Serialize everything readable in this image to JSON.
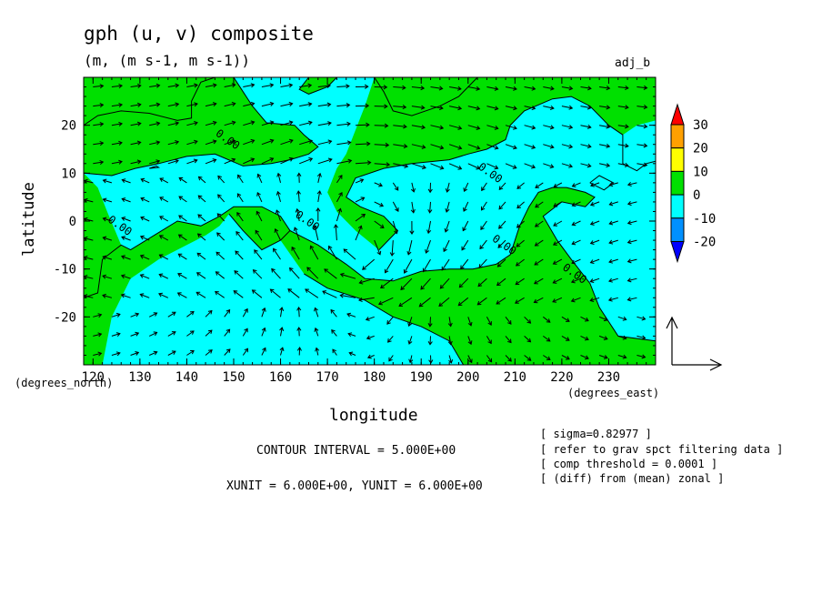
{
  "chart_data": {
    "type": "heatmap",
    "title": "gph (u, v) composite",
    "subtitle": "(m, (m s-1, m s-1))",
    "corner_label": "adj_b",
    "xlabel": "longitude",
    "ylabel": "latitude",
    "x_unit_label": "(degrees_east)",
    "y_unit_label": "(degrees_north)",
    "xlim": [
      118,
      240
    ],
    "ylim": [
      -30,
      30
    ],
    "x_ticks": [
      120,
      130,
      140,
      150,
      160,
      170,
      180,
      190,
      200,
      210,
      220,
      230
    ],
    "y_ticks": [
      20,
      10,
      0,
      -10,
      -20
    ],
    "colorbar": {
      "labels": [
        "30",
        "20",
        "10",
        "0",
        "-10",
        "-20"
      ],
      "bins": [
        {
          "range": [
            30,
            40
          ],
          "color": "#ff0000"
        },
        {
          "range": [
            20,
            30
          ],
          "color": "#ffa000"
        },
        {
          "range": [
            10,
            20
          ],
          "color": "#ffff00"
        },
        {
          "range": [
            0,
            10
          ],
          "color": "#00e000"
        },
        {
          "range": [
            -10,
            0
          ],
          "color": "#00ffff"
        },
        {
          "range": [
            -20,
            -10
          ],
          "color": "#0090ff"
        },
        {
          "range": [
            -30,
            -20
          ],
          "color": "#0000ff"
        }
      ]
    },
    "contour_labels": [
      {
        "text": "0.00",
        "lon": 146,
        "lat": 18
      },
      {
        "text": "0.00",
        "lon": 123,
        "lat": 0
      },
      {
        "text": "0.00",
        "lon": 163,
        "lat": 1
      },
      {
        "text": "0.00",
        "lon": 202,
        "lat": 11
      },
      {
        "text": "0.00",
        "lon": 205,
        "lat": -4
      },
      {
        "text": "0.00",
        "lon": 220,
        "lat": -10
      }
    ],
    "zero_contour_segments": [
      [
        [
          118,
          20
        ],
        [
          121,
          22
        ],
        [
          126,
          23
        ],
        [
          132,
          22.5
        ],
        [
          138,
          21
        ],
        [
          141,
          21.5
        ],
        [
          141,
          25
        ],
        [
          143,
          29
        ],
        [
          146,
          30
        ]
      ],
      [
        [
          118,
          10
        ],
        [
          124,
          9.5
        ],
        [
          129,
          11
        ],
        [
          134,
          12
        ],
        [
          140,
          13.5
        ],
        [
          146,
          14
        ],
        [
          152,
          11.5
        ],
        [
          158,
          12
        ],
        [
          162,
          12.8
        ],
        [
          166,
          14
        ],
        [
          168,
          15.5
        ],
        [
          165,
          18
        ],
        [
          163,
          20
        ],
        [
          157,
          20.5
        ],
        [
          154,
          24
        ],
        [
          152,
          27
        ],
        [
          150,
          30
        ]
      ],
      [
        [
          118,
          -16
        ],
        [
          121,
          -15
        ],
        [
          122,
          -8
        ],
        [
          126,
          -5
        ],
        [
          128,
          -6
        ],
        [
          133,
          -3
        ],
        [
          138,
          0
        ],
        [
          143,
          -1
        ],
        [
          147,
          1
        ],
        [
          150,
          3
        ],
        [
          156,
          3
        ],
        [
          160,
          1
        ],
        [
          162,
          -2
        ],
        [
          160,
          -4
        ],
        [
          156,
          -6
        ],
        [
          154,
          -4
        ],
        [
          152,
          -2
        ],
        [
          149,
          1.5
        ]
      ],
      [
        [
          165,
          -11
        ],
        [
          170,
          -14
        ],
        [
          178,
          -16.5
        ],
        [
          184,
          -20
        ],
        [
          190,
          -22
        ],
        [
          196,
          -25
        ],
        [
          199,
          -30
        ]
      ],
      [
        [
          162,
          -2
        ],
        [
          168,
          -5
        ],
        [
          174,
          -9
        ],
        [
          178,
          -12
        ],
        [
          184,
          -12.5
        ],
        [
          190,
          -10.5
        ],
        [
          196,
          -10
        ],
        [
          201,
          -10
        ],
        [
          206,
          -9
        ],
        [
          209,
          -7
        ],
        [
          211,
          -1
        ],
        [
          213,
          3
        ],
        [
          215,
          6
        ],
        [
          218,
          7
        ],
        [
          221,
          7
        ],
        [
          225,
          6
        ],
        [
          227,
          5
        ],
        [
          225,
          3
        ],
        [
          220,
          4
        ],
        [
          216,
          1
        ],
        [
          219,
          -4
        ],
        [
          222,
          -8
        ],
        [
          226,
          -13
        ],
        [
          228,
          -18
        ],
        [
          232,
          -24
        ],
        [
          240,
          -25
        ]
      ],
      [
        [
          181,
          -6
        ],
        [
          185,
          -2
        ],
        [
          182,
          1
        ],
        [
          177,
          3
        ],
        [
          174,
          5
        ],
        [
          176,
          9
        ],
        [
          182,
          11
        ],
        [
          188,
          12
        ],
        [
          196,
          12.8
        ],
        [
          200,
          14
        ],
        [
          204,
          15
        ],
        [
          208,
          17
        ],
        [
          209,
          20
        ],
        [
          212,
          23
        ],
        [
          218,
          25.5
        ],
        [
          222,
          26
        ],
        [
          226,
          24
        ],
        [
          228,
          22
        ],
        [
          230,
          20
        ],
        [
          233,
          18
        ],
        [
          233,
          12
        ],
        [
          236,
          10.5
        ],
        [
          238,
          12
        ],
        [
          240,
          12.5
        ]
      ],
      [
        [
          180,
          30
        ],
        [
          182,
          27
        ],
        [
          184,
          23
        ],
        [
          188,
          22
        ],
        [
          194,
          24
        ],
        [
          198,
          26
        ],
        [
          202,
          30
        ]
      ],
      [
        [
          172,
          30
        ],
        [
          170,
          28
        ],
        [
          166,
          26.5
        ],
        [
          164,
          27.5
        ],
        [
          166,
          30
        ]
      ],
      [
        [
          132,
          11
        ],
        [
          134,
          11.2
        ],
        [
          133.5,
          11.5
        ],
        [
          132,
          11
        ]
      ],
      [
        [
          226,
          8
        ],
        [
          228,
          9.5
        ],
        [
          231,
          8
        ],
        [
          229,
          6.5
        ],
        [
          226,
          8
        ]
      ]
    ],
    "legend_vector": {
      "reference_length": 6,
      "label_x": "XUNIT = 6.000E+00",
      "label_y": "YUNIT = 6.000E+00"
    },
    "contour_interval": "CONTOUR INTERVAL = 5.000E+00",
    "xyunit_text": "XUNIT = 6.000E+00, YUNIT = 6.000E+00",
    "notes": [
      "[ sigma=0.82977 ]",
      "[ refer to grav spct filtering data ]",
      "[ comp threshold = 0.0001 ]",
      "[ (diff) from (mean) zonal ]"
    ],
    "vector_field": {
      "description_free": true,
      "cyclone_center": {
        "lon": 178,
        "lat": -6
      },
      "grid_lon_step": 4,
      "grid_lat_step": 4
    },
    "colors": {
      "positive": "#00e000",
      "negative": "#00ffff",
      "line": "#000000"
    }
  }
}
